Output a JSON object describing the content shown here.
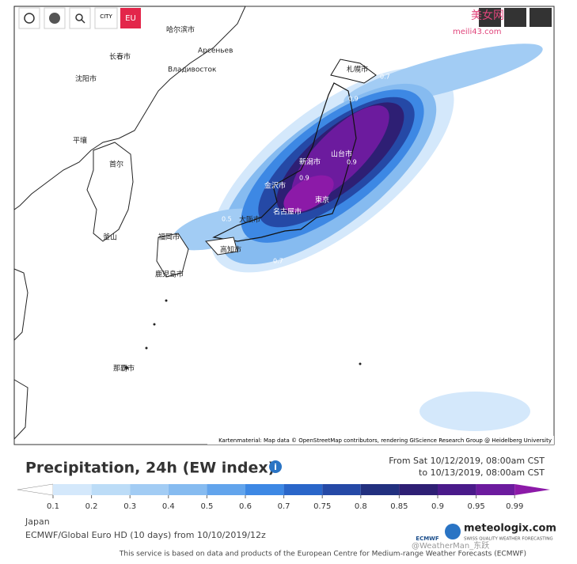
{
  "toolbar": {
    "city": "CITY",
    "region": "EU"
  },
  "map": {
    "labels": [
      "札幌市",
      "新潟市",
      "山台市",
      "金沢市",
      "東京",
      "名古屋市",
      "大阪市",
      "福岡市",
      "高知市",
      "鹿児島市",
      "那覇市",
      "Владивосток",
      "Арсеньев",
      "哈尔滨市",
      "长春市",
      "沈阳市",
      "平壤",
      "首尔",
      "釜山"
    ],
    "contour_labels": [
      "0.7",
      "0.7",
      "0.9",
      "0.9",
      "0.9",
      "0.5",
      "0.7",
      "0.5"
    ],
    "attribution": "Kartenmaterial: Map data © OpenStreetMap contributors, rendering GIScience Research Group @ Heidelberg University"
  },
  "footer": {
    "title": "Precipitation, 24h (EW index)",
    "period_from": "From Sat 10/12/2019, 08:00am CST",
    "period_to": "to 10/13/2019, 08:00am CST",
    "legend": {
      "levels": [
        {
          "value": 0.1,
          "color": "#d4e8fb"
        },
        {
          "value": 0.2,
          "color": "#bcdcf7"
        },
        {
          "value": 0.3,
          "color": "#a2ccf4"
        },
        {
          "value": 0.4,
          "color": "#86bbf0"
        },
        {
          "value": 0.5,
          "color": "#62a4ec"
        },
        {
          "value": 0.6,
          "color": "#3d88e4"
        },
        {
          "value": 0.7,
          "color": "#2a66c9"
        },
        {
          "value": 0.75,
          "color": "#2549a6"
        },
        {
          "value": 0.8,
          "color": "#22307f"
        },
        {
          "value": 0.85,
          "color": "#2e1f74"
        },
        {
          "value": 0.9,
          "color": "#4a1a8a"
        },
        {
          "value": 0.95,
          "color": "#6c1b9e"
        },
        {
          "value": 0.99,
          "color": "#8c1aa8"
        }
      ]
    },
    "region": "Japan",
    "model": "ECMWF/Global Euro HD (10 days) from 10/10/2019/12z",
    "brand": "meteologix.com",
    "brand_tagline": "SWISS QUALITY WEATHER FORECASTING",
    "ecmwf": "ECMWF",
    "service_note": "This service is based on data and products of the European Centre for Medium-range Weather Forecasts (ECMWF)"
  },
  "watermarks": [
    "美女网",
    "meili43.com",
    "@WeatherMan_东跃"
  ]
}
